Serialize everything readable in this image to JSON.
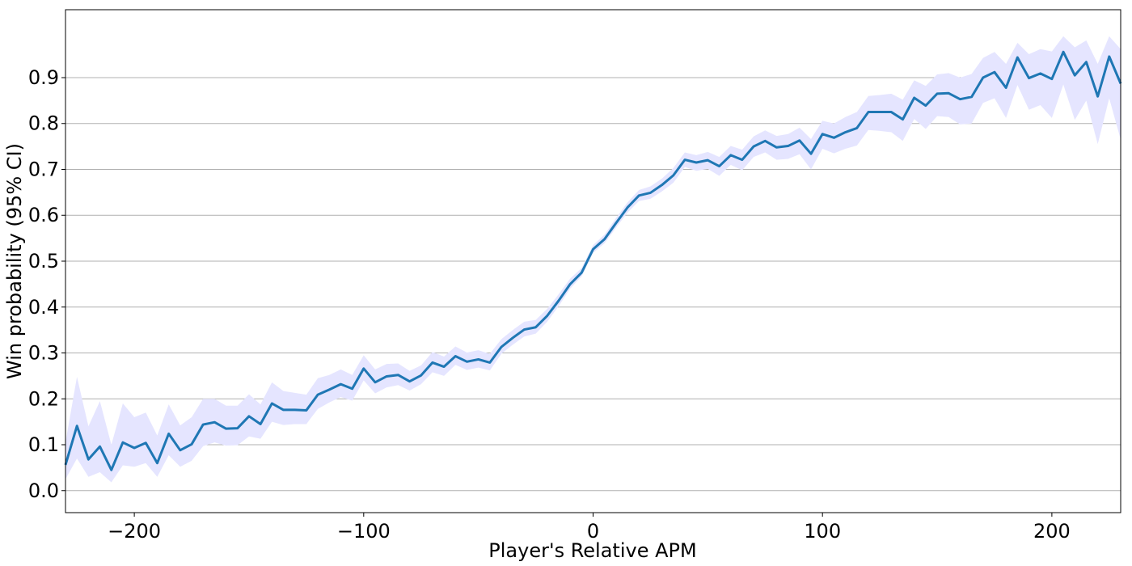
{
  "chart_data": {
    "type": "line",
    "title": "",
    "xlabel": "Player's Relative APM",
    "ylabel": "Win probability (95% CI)",
    "xlim": [
      -230,
      230
    ],
    "ylim": [
      -0.048,
      1.048
    ],
    "x_ticks": [
      -200,
      -100,
      0,
      100,
      200
    ],
    "x_tick_labels": [
      "−200",
      "−100",
      "0",
      "100",
      "200"
    ],
    "y_ticks": [
      0.0,
      0.1,
      0.2,
      0.3,
      0.4,
      0.5,
      0.6,
      0.7,
      0.8,
      0.9
    ],
    "y_tick_labels": [
      "0.0",
      "0.1",
      "0.2",
      "0.3",
      "0.4",
      "0.5",
      "0.6",
      "0.7",
      "0.8",
      "0.9"
    ],
    "grid": "horizontal",
    "legend": "none",
    "line_color": "#1f77b4",
    "band_color": "#e5e5ff",
    "x": [
      -230,
      -225,
      -220,
      -215,
      -210,
      -205,
      -200,
      -195,
      -190,
      -185,
      -180,
      -175,
      -170,
      -165,
      -160,
      -155,
      -150,
      -145,
      -140,
      -135,
      -130,
      -125,
      -120,
      -115,
      -110,
      -105,
      -100,
      -95,
      -90,
      -85,
      -80,
      -75,
      -70,
      -65,
      -60,
      -55,
      -50,
      -45,
      -40,
      -35,
      -30,
      -25,
      -20,
      -15,
      -10,
      -5,
      0,
      5,
      10,
      15,
      20,
      25,
      30,
      35,
      40,
      45,
      50,
      55,
      60,
      65,
      70,
      75,
      80,
      85,
      90,
      95,
      100,
      105,
      110,
      115,
      120,
      125,
      130,
      135,
      140,
      145,
      150,
      155,
      160,
      165,
      170,
      175,
      180,
      185,
      190,
      195,
      200,
      205,
      210,
      215,
      220,
      225,
      230
    ],
    "y": [
      0.056,
      0.141,
      0.068,
      0.096,
      0.045,
      0.105,
      0.093,
      0.104,
      0.06,
      0.124,
      0.088,
      0.101,
      0.144,
      0.149,
      0.135,
      0.136,
      0.162,
      0.145,
      0.19,
      0.176,
      0.176,
      0.175,
      0.209,
      0.22,
      0.232,
      0.222,
      0.266,
      0.236,
      0.249,
      0.252,
      0.238,
      0.251,
      0.279,
      0.27,
      0.293,
      0.281,
      0.286,
      0.279,
      0.313,
      0.333,
      0.351,
      0.356,
      0.381,
      0.414,
      0.45,
      0.475,
      0.526,
      0.548,
      0.583,
      0.617,
      0.643,
      0.649,
      0.666,
      0.687,
      0.721,
      0.715,
      0.72,
      0.707,
      0.731,
      0.721,
      0.75,
      0.762,
      0.748,
      0.751,
      0.763,
      0.734,
      0.777,
      0.769,
      0.781,
      0.79,
      0.825,
      0.825,
      0.825,
      0.809,
      0.856,
      0.839,
      0.865,
      0.866,
      0.853,
      0.858,
      0.9,
      0.912,
      0.878,
      0.944,
      0.899,
      0.909,
      0.897,
      0.956,
      0.905,
      0.934,
      0.859,
      0.946,
      0.887
    ],
    "ci_lower": [
      0.025,
      0.07,
      0.03,
      0.04,
      0.018,
      0.055,
      0.052,
      0.06,
      0.03,
      0.077,
      0.052,
      0.065,
      0.097,
      0.105,
      0.098,
      0.099,
      0.118,
      0.113,
      0.15,
      0.143,
      0.145,
      0.145,
      0.178,
      0.192,
      0.204,
      0.196,
      0.24,
      0.212,
      0.225,
      0.23,
      0.218,
      0.232,
      0.258,
      0.25,
      0.274,
      0.263,
      0.268,
      0.262,
      0.298,
      0.318,
      0.336,
      0.342,
      0.368,
      0.402,
      0.44,
      0.467,
      0.518,
      0.539,
      0.573,
      0.606,
      0.631,
      0.636,
      0.652,
      0.671,
      0.705,
      0.697,
      0.701,
      0.686,
      0.71,
      0.698,
      0.727,
      0.737,
      0.721,
      0.723,
      0.733,
      0.7,
      0.745,
      0.735,
      0.745,
      0.752,
      0.786,
      0.784,
      0.781,
      0.762,
      0.81,
      0.788,
      0.816,
      0.814,
      0.798,
      0.8,
      0.845,
      0.855,
      0.812,
      0.884,
      0.83,
      0.84,
      0.812,
      0.885,
      0.808,
      0.85,
      0.755,
      0.855,
      0.765
    ],
    "ci_upper": [
      0.105,
      0.248,
      0.14,
      0.195,
      0.1,
      0.19,
      0.16,
      0.17,
      0.12,
      0.188,
      0.142,
      0.16,
      0.2,
      0.2,
      0.185,
      0.185,
      0.21,
      0.188,
      0.236,
      0.217,
      0.213,
      0.209,
      0.245,
      0.252,
      0.264,
      0.252,
      0.295,
      0.264,
      0.276,
      0.277,
      0.261,
      0.273,
      0.302,
      0.292,
      0.314,
      0.301,
      0.306,
      0.298,
      0.33,
      0.35,
      0.368,
      0.372,
      0.396,
      0.428,
      0.462,
      0.485,
      0.535,
      0.558,
      0.594,
      0.628,
      0.655,
      0.663,
      0.68,
      0.703,
      0.737,
      0.731,
      0.738,
      0.727,
      0.751,
      0.743,
      0.772,
      0.785,
      0.773,
      0.777,
      0.791,
      0.766,
      0.806,
      0.8,
      0.814,
      0.825,
      0.86,
      0.862,
      0.865,
      0.852,
      0.894,
      0.882,
      0.907,
      0.91,
      0.9,
      0.908,
      0.943,
      0.956,
      0.93,
      0.976,
      0.951,
      0.962,
      0.957,
      0.99,
      0.966,
      0.981,
      0.93,
      0.99,
      0.962
    ]
  }
}
